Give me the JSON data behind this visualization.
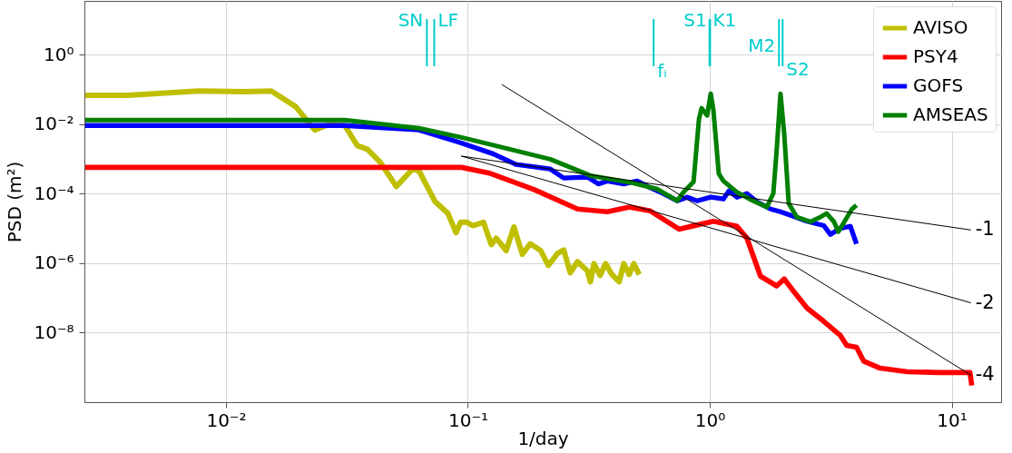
{
  "chart_data": {
    "type": "line",
    "xlabel": "1/day",
    "ylabel": "PSD (m²)",
    "log": "xy",
    "grid": true,
    "legend": "top right",
    "xlim": [
      0.0026,
      16
    ],
    "ylim": [
      1e-10,
      35
    ],
    "xticks": [
      {
        "value": 0.01,
        "label": "10⁻²"
      },
      {
        "value": 0.1,
        "label": "10⁻¹"
      },
      {
        "value": 1,
        "label": "10⁰"
      },
      {
        "value": 10,
        "label": "10¹"
      }
    ],
    "yticks": [
      {
        "value": 1e-08,
        "label": "10⁻⁸"
      },
      {
        "value": 1e-06,
        "label": "10⁻⁶"
      },
      {
        "value": 0.0001,
        "label": "10⁻⁴"
      },
      {
        "value": 0.01,
        "label": "10⁻²"
      },
      {
        "value": 1,
        "label": "10⁰"
      }
    ],
    "series": [
      {
        "name": "AVISO",
        "color": "#bfbf00",
        "x": [
          0.00262,
          0.00391,
          0.00772,
          0.0119,
          0.0154,
          0.0194,
          0.0233,
          0.0265,
          0.031,
          0.0349,
          0.0384,
          0.0433,
          0.0506,
          0.0591,
          0.0628,
          0.0733,
          0.0827,
          0.0894,
          0.0933,
          0.0991,
          0.105,
          0.116,
          0.125,
          0.131,
          0.144,
          0.155,
          0.168,
          0.181,
          0.2,
          0.215,
          0.235,
          0.249,
          0.265,
          0.284,
          0.312,
          0.321,
          0.332,
          0.352,
          0.371,
          0.394,
          0.422,
          0.441,
          0.464,
          0.485,
          0.511
        ],
        "values": [
          0.067,
          0.067,
          0.09,
          0.085,
          0.09,
          0.032,
          0.0068,
          0.0097,
          0.0091,
          0.0024,
          0.0019,
          0.00082,
          0.00016,
          0.00051,
          0.00045,
          5.8e-05,
          2.7e-05,
          7.5e-06,
          1.5e-05,
          1.5e-05,
          1.2e-05,
          1.5e-05,
          3.4e-06,
          5.2e-06,
          2.3e-06,
          1.1e-05,
          1.8e-06,
          3.6e-06,
          2.3e-06,
          8.6e-07,
          1.9e-06,
          2.4e-06,
          5.3e-07,
          1.1e-06,
          6e-07,
          2.9e-07,
          9.7e-07,
          4.4e-07,
          9.7e-07,
          4.7e-07,
          2.9e-07,
          9.7e-07,
          4.7e-07,
          9.7e-07,
          4.7e-07
        ]
      },
      {
        "name": "PSY4",
        "color": "#ff0000",
        "x": [
          0.00262,
          0.0941,
          0.124,
          0.188,
          0.284,
          0.377,
          0.468,
          0.566,
          0.746,
          1.035,
          1.295,
          1.424,
          1.62,
          1.89,
          2.03,
          2.23,
          2.52,
          2.96,
          3.46,
          3.68,
          4.04,
          4.33,
          5.06,
          6.55,
          8.93,
          11.9,
          12.1
        ],
        "values": [
          0.00057,
          0.00057,
          0.00038,
          0.00013,
          3.6e-05,
          3e-05,
          4.1e-05,
          3.2e-05,
          9.5e-06,
          1.6e-05,
          1.15e-05,
          5.2e-06,
          4.2e-07,
          2.2e-07,
          3.5e-07,
          1.5e-07,
          5.1e-08,
          2.1e-08,
          8.4e-09,
          4.3e-09,
          3.8e-09,
          1.5e-09,
          9.5e-10,
          7.5e-10,
          7.1e-10,
          7.1e-10,
          3e-10
        ]
      },
      {
        "name": "GOFS",
        "color": "#0000ff",
        "x": [
          0.00262,
          0.031,
          0.0628,
          0.0933,
          0.127,
          0.158,
          0.219,
          0.249,
          0.312,
          0.346,
          0.377,
          0.441,
          0.501,
          0.566,
          0.644,
          0.733,
          0.806,
          0.887,
          1.009,
          1.138,
          1.2,
          1.295,
          1.424,
          1.566,
          1.782,
          1.96,
          2.15,
          2.52,
          2.96,
          3.15,
          3.46,
          3.81,
          4.04
        ],
        "values": [
          0.0091,
          0.0091,
          0.0068,
          0.0029,
          0.0014,
          0.00069,
          0.00051,
          0.00028,
          0.0003,
          0.00019,
          0.00023,
          0.00019,
          0.00023,
          0.00015,
          0.0001,
          6.2e-05,
          7.9e-05,
          6.2e-05,
          7.9e-05,
          7e-05,
          0.00012,
          7.9e-05,
          0.0001,
          5.8e-05,
          3.6e-05,
          3e-05,
          2.4e-05,
          1.6e-05,
          1.2e-05,
          6.7e-06,
          1e-05,
          1.15e-05,
          3.6e-06
        ]
      },
      {
        "name": "AMSEAS",
        "color": "#008000",
        "x": [
          0.00262,
          0.031,
          0.0628,
          0.0933,
          0.124,
          0.219,
          0.321,
          0.468,
          0.607,
          0.733,
          0.778,
          0.857,
          0.902,
          0.925,
          0.975,
          1.009,
          1.035,
          1.089,
          1.138,
          1.295,
          1.51,
          1.72,
          1.83,
          1.89,
          1.96,
          2.03,
          2.12,
          2.29,
          2.61,
          2.86,
          3.04,
          3.26,
          3.4,
          3.68,
          3.87,
          4.04
        ],
        "values": [
          0.0131,
          0.0131,
          0.0076,
          0.0042,
          0.0026,
          0.00098,
          0.00033,
          0.00021,
          0.000135,
          6.2e-05,
          0.00011,
          0.00022,
          0.0139,
          0.0287,
          0.0177,
          0.075,
          0.0254,
          0.00038,
          0.00023,
          0.00011,
          6.2e-05,
          4.1e-05,
          0.0001,
          0.0018,
          0.075,
          0.0053,
          5.2e-05,
          2.1e-05,
          1.55e-05,
          2.1e-05,
          2.7e-05,
          1.55e-05,
          8e-06,
          2e-05,
          3.6e-05,
          4.6e-05
        ]
      },
      {
        "name": "-1",
        "type": "line",
        "color": "#000000",
        "x": [
          0.094,
          12
        ],
        "values": [
          0.0012,
          9e-06
        ]
      },
      {
        "name": "-2",
        "type": "line",
        "color": "#000000",
        "x": [
          0.094,
          12
        ],
        "values": [
          0.0012,
          7.2e-08
        ]
      },
      {
        "name": "-4",
        "type": "line",
        "color": "#000000",
        "x": [
          0.138,
          12
        ],
        "values": [
          0.138,
          6e-10
        ]
      }
    ],
    "ref_lines": [
      {
        "axis": "x",
        "value": 0.0677,
        "label": "SN",
        "color": "#00cccc"
      },
      {
        "axis": "x",
        "value": 0.0726,
        "label": "LF",
        "color": "#00cccc"
      },
      {
        "axis": "x",
        "value": 0.586,
        "label": "fᵢ",
        "color": "#00cccc"
      },
      {
        "axis": "x",
        "value": 0.997,
        "label": "S1",
        "color": "#00cccc"
      },
      {
        "axis": "x",
        "value": 1.003,
        "label": "K1",
        "color": "#00cccc"
      },
      {
        "axis": "x",
        "value": 1.932,
        "label": "M2",
        "color": "#00cccc"
      },
      {
        "axis": "x",
        "value": 2.0,
        "label": "S2",
        "color": "#00cccc"
      }
    ]
  }
}
